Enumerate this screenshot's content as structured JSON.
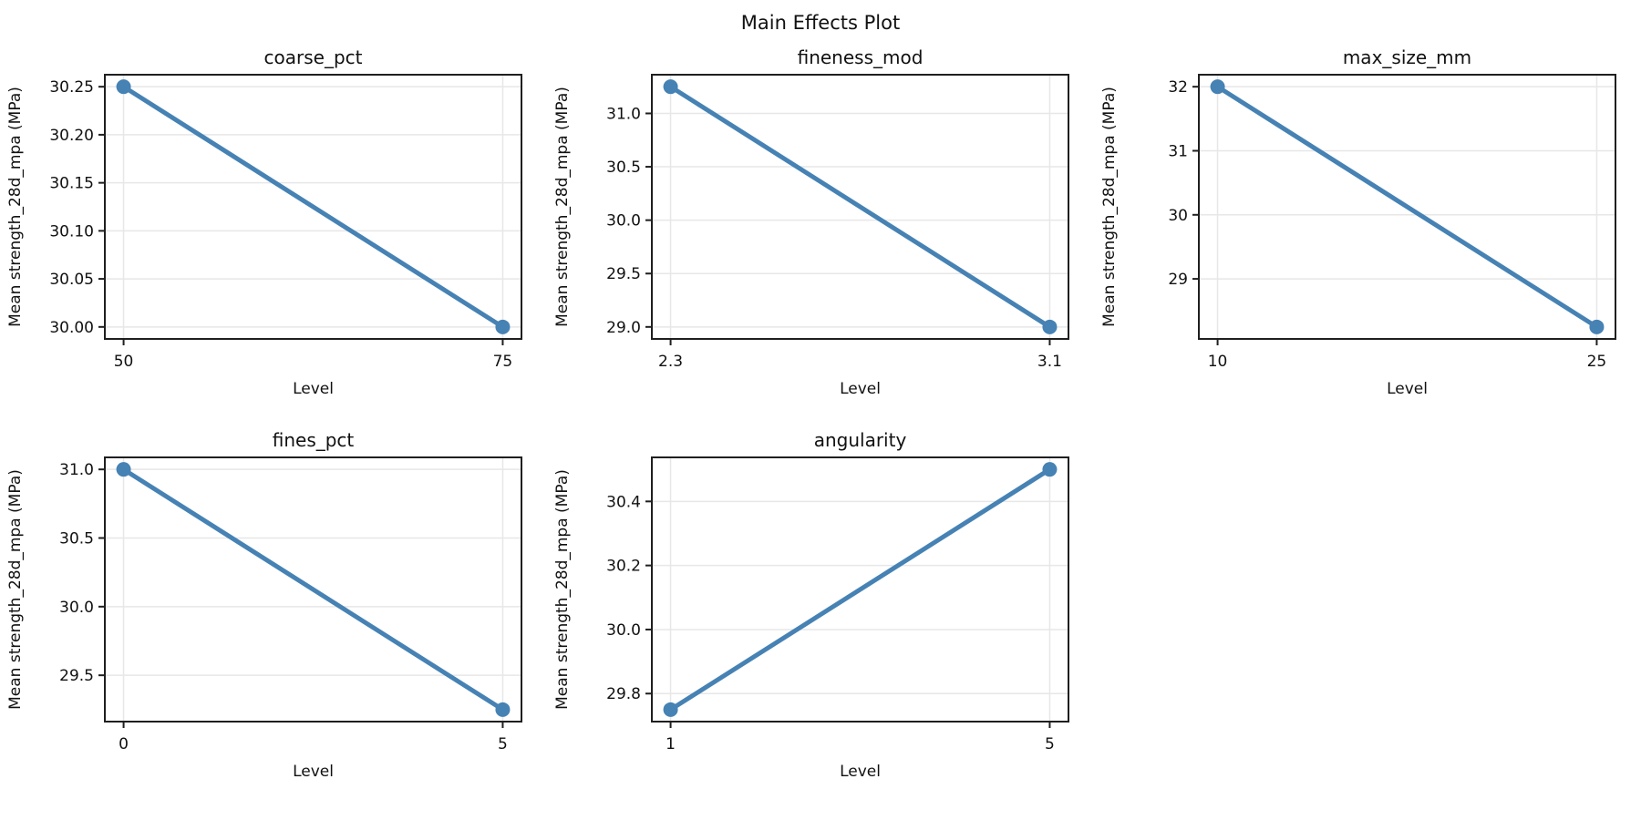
{
  "figure": {
    "title": "Main Effects Plot"
  },
  "style": {
    "line_color": "#4682B4",
    "grid_color": "#e7e7e7",
    "spine_color": "#1f1f1f",
    "text_color": "#111111",
    "background": "#ffffff"
  },
  "chart_data": [
    {
      "type": "line",
      "title": "coarse_pct",
      "xlabel": "Level",
      "ylabel": "Mean strength_28d_mpa (MPa)",
      "x": [
        50,
        75
      ],
      "x_tick_labels": [
        "50",
        "75"
      ],
      "values": [
        30.25,
        30.0
      ],
      "y_tick_values": [
        30.0,
        30.05,
        30.1,
        30.15,
        30.2,
        30.25
      ],
      "y_tick_labels": [
        "30.00",
        "30.05",
        "30.10",
        "30.15",
        "30.20",
        "30.25"
      ],
      "ylim": [
        29.9875,
        30.2625
      ],
      "grid": true,
      "legend": null
    },
    {
      "type": "line",
      "title": "fineness_mod",
      "xlabel": "Level",
      "ylabel": "Mean strength_28d_mpa (MPa)",
      "x": [
        2.3,
        3.1
      ],
      "x_tick_labels": [
        "2.3",
        "3.1"
      ],
      "values": [
        31.25,
        29.0
      ],
      "y_tick_values": [
        29.0,
        29.5,
        30.0,
        30.5,
        31.0
      ],
      "y_tick_labels": [
        "29.0",
        "29.5",
        "30.0",
        "30.5",
        "31.0"
      ],
      "ylim": [
        28.8875,
        31.3625
      ],
      "grid": true,
      "legend": null
    },
    {
      "type": "line",
      "title": "max_size_mm",
      "xlabel": "Level",
      "ylabel": "Mean strength_28d_mpa (MPa)",
      "x": [
        10,
        25
      ],
      "x_tick_labels": [
        "10",
        "25"
      ],
      "values": [
        32.0,
        28.25
      ],
      "y_tick_values": [
        29,
        30,
        31,
        32
      ],
      "y_tick_labels": [
        "29",
        "30",
        "31",
        "32"
      ],
      "ylim": [
        28.0625,
        32.1875
      ],
      "grid": true,
      "legend": null
    },
    {
      "type": "line",
      "title": "fines_pct",
      "xlabel": "Level",
      "ylabel": "Mean strength_28d_mpa (MPa)",
      "x": [
        0,
        5
      ],
      "x_tick_labels": [
        "0",
        "5"
      ],
      "values": [
        31.0,
        29.25
      ],
      "y_tick_values": [
        29.5,
        30.0,
        30.5,
        31.0
      ],
      "y_tick_labels": [
        "29.5",
        "30.0",
        "30.5",
        "31.0"
      ],
      "ylim": [
        29.1625,
        31.0875
      ],
      "grid": true,
      "legend": null
    },
    {
      "type": "line",
      "title": "angularity",
      "xlabel": "Level",
      "ylabel": "Mean strength_28d_mpa (MPa)",
      "x": [
        1,
        5
      ],
      "x_tick_labels": [
        "1",
        "5"
      ],
      "values": [
        29.75,
        30.5
      ],
      "y_tick_values": [
        29.8,
        30.0,
        30.2,
        30.4
      ],
      "y_tick_labels": [
        "29.8",
        "30.0",
        "30.2",
        "30.4"
      ],
      "ylim": [
        29.7125,
        30.5375
      ],
      "grid": true,
      "legend": null
    }
  ]
}
